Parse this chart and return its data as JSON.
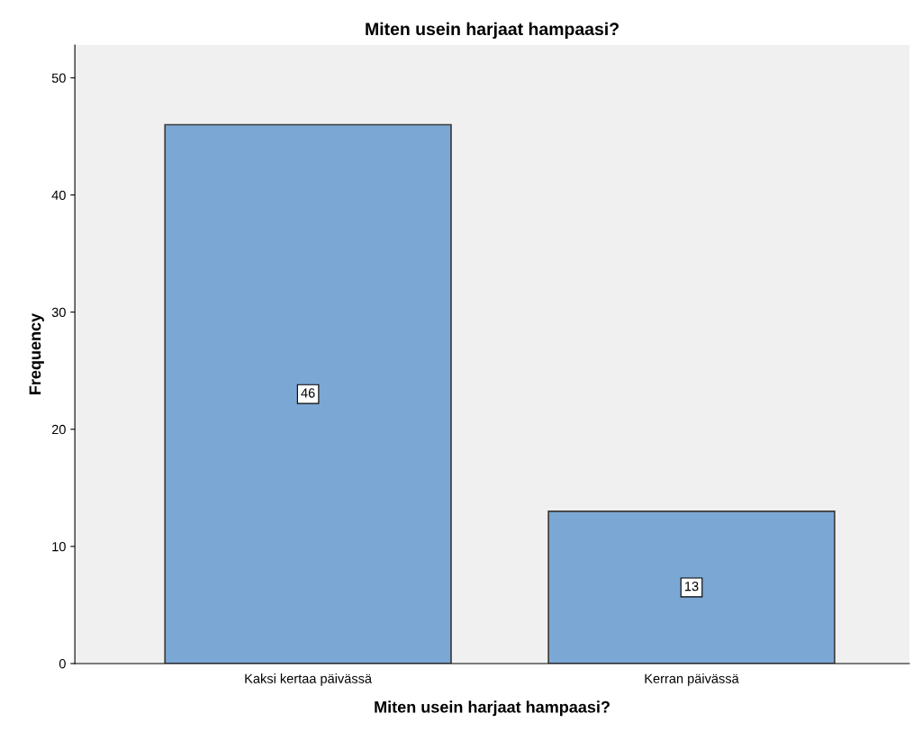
{
  "chart_data": {
    "type": "bar",
    "title": "Miten usein harjaat hampaasi?",
    "xlabel": "Miten usein harjaat hampaasi?",
    "ylabel": "Frequency",
    "categories": [
      "Kaksi kertaa päivässä",
      "Kerran päivässä"
    ],
    "values": [
      46,
      13
    ],
    "color": "#7ba7d4",
    "ylim": [
      0,
      52.8
    ],
    "yticks": [
      0,
      10,
      20,
      30,
      40,
      50
    ],
    "grid": false,
    "legend": false,
    "data_labels": true
  }
}
